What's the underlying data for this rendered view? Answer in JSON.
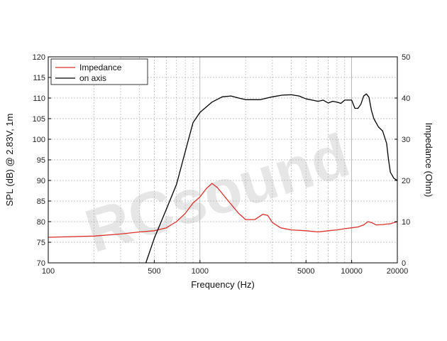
{
  "chart_data": {
    "type": "line",
    "xlabel": "Frequency (Hz)",
    "ylabel": "SPL (dB) @ 2.83V, 1m",
    "y2label": "Impedance (Ohm)",
    "xscale": "log",
    "xlim": [
      100,
      20000
    ],
    "ylim": [
      70,
      120
    ],
    "y2lim": [
      0,
      50
    ],
    "grid": true,
    "legend_position": "top-left",
    "x_ticks": [
      "100",
      "500",
      "1000",
      "5000",
      "10000",
      "20000"
    ],
    "x_tick_values": [
      100,
      500,
      1000,
      5000,
      10000,
      20000
    ],
    "y_ticks": [
      "70",
      "75",
      "80",
      "85",
      "90",
      "95",
      "100",
      "105",
      "110",
      "115",
      "120"
    ],
    "y2_ticks": [
      "0",
      "10",
      "20",
      "30",
      "40",
      "50"
    ],
    "watermark": "RCsound",
    "series": [
      {
        "name": "Impedance",
        "axis": "right",
        "color": "#d9302b",
        "x": [
          100,
          200,
          300,
          400,
          500,
          600,
          700,
          800,
          900,
          1000,
          1100,
          1200,
          1300,
          1500,
          1800,
          2000,
          2300,
          2600,
          2800,
          3000,
          3400,
          4000,
          5000,
          6000,
          7000,
          8000,
          9000,
          10000,
          11000,
          12000,
          12800,
          13500,
          14500,
          16000,
          18000,
          20000
        ],
        "values": [
          6.2,
          6.5,
          7.0,
          7.5,
          7.8,
          8.5,
          10.0,
          12.0,
          14.5,
          16.0,
          18.0,
          19.3,
          18.3,
          15.5,
          12.0,
          10.5,
          10.5,
          11.8,
          11.5,
          9.8,
          8.5,
          8.0,
          7.8,
          7.5,
          7.8,
          8.0,
          8.3,
          8.5,
          8.7,
          9.2,
          10.0,
          9.8,
          9.2,
          9.3,
          9.5,
          10.0
        ]
      },
      {
        "name": "on axis",
        "axis": "left",
        "color": "#000000",
        "x": [
          440,
          500,
          600,
          700,
          800,
          900,
          1000,
          1200,
          1400,
          1600,
          1800,
          2000,
          2500,
          3000,
          3500,
          4000,
          4500,
          5000,
          5500,
          6000,
          6500,
          7000,
          7500,
          8000,
          8500,
          9000,
          9500,
          10000,
          10500,
          11000,
          11500,
          12000,
          12500,
          13000,
          13500,
          14000,
          15000,
          16000,
          17000,
          17500,
          18000,
          19000,
          20000
        ],
        "values": [
          70,
          76,
          83,
          89,
          97,
          104,
          106.5,
          109,
          110.3,
          110.5,
          110,
          109.6,
          109.6,
          110.3,
          110.7,
          110.8,
          110.5,
          109.8,
          109.5,
          109.2,
          109.5,
          108.8,
          109.2,
          109,
          108.7,
          109.5,
          109.5,
          109.5,
          107.5,
          107.5,
          108.5,
          110.5,
          111,
          110.2,
          107,
          105,
          103,
          102,
          99,
          95,
          92,
          90.5,
          90
        ]
      }
    ]
  }
}
